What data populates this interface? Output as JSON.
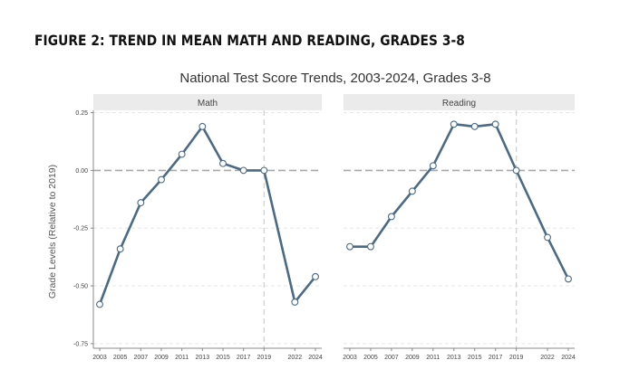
{
  "figure_heading": "FIGURE 2: TREND IN MEAN MATH AND READING, GRADES 3-8",
  "chart_data": {
    "type": "line",
    "title": "National Test Score Trends, 2003-2024, Grades 3-8",
    "ylabel": "Grade Levels (Relative to 2019)",
    "xlabel": "",
    "ylim": [
      -0.77,
      0.26
    ],
    "yticks": [
      0.25,
      0.0,
      -0.25,
      -0.5,
      -0.75
    ],
    "ytick_labels": [
      "0.25",
      "0.00",
      "-0.25",
      "-0.50",
      "-0.75"
    ],
    "xlim": [
      2003,
      2024
    ],
    "xticks": [
      2003,
      2005,
      2007,
      2009,
      2011,
      2013,
      2015,
      2017,
      2019,
      2022,
      2024
    ],
    "reference_x": 2019,
    "reference_y": 0.0,
    "grid": "horizontal dashed",
    "line_color": "#4a6a85",
    "panel_header_color": "#ebebeb",
    "panels": [
      {
        "name": "Math",
        "x": [
          2003,
          2005,
          2007,
          2009,
          2011,
          2013,
          2015,
          2017,
          2019,
          2022,
          2024
        ],
        "values": [
          -0.58,
          -0.34,
          -0.14,
          -0.04,
          0.07,
          0.19,
          0.03,
          0.0,
          0.0,
          -0.57,
          -0.46
        ]
      },
      {
        "name": "Reading",
        "x": [
          2003,
          2005,
          2007,
          2009,
          2011,
          2013,
          2015,
          2017,
          2019,
          2022,
          2024
        ],
        "values": [
          -0.33,
          -0.33,
          -0.2,
          -0.09,
          0.02,
          0.2,
          0.19,
          0.2,
          0.0,
          -0.29,
          -0.47
        ]
      }
    ]
  }
}
